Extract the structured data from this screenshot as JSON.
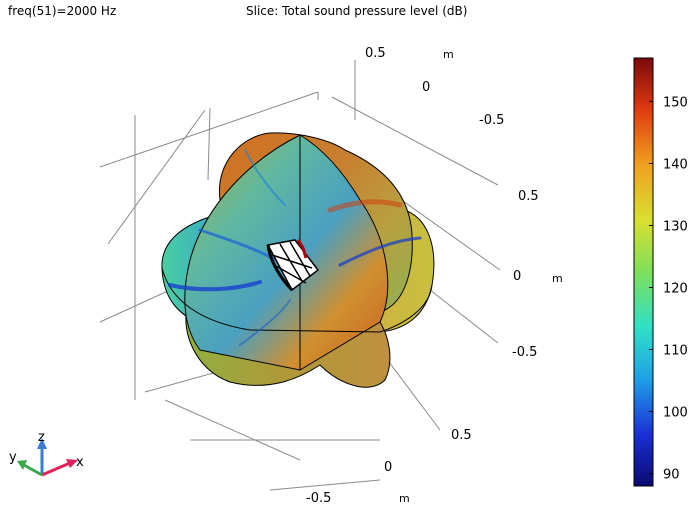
{
  "header": {
    "parameter": "freq(51)=2000 Hz",
    "title": "Slice: Total sound pressure level (dB)"
  },
  "axes_labels": {
    "top_z_pos": "0.5",
    "top_zero": "0",
    "top_z_neg": "-0.5",
    "top_unit": "m",
    "right_pos": "0.5",
    "right_zero": "0",
    "right_neg": "-0.5",
    "right_unit": "m",
    "bottom_pos": "0.5",
    "bottom_zero": "0",
    "bottom_neg": "-0.5",
    "bottom_unit": "m"
  },
  "triad": {
    "x": "x",
    "y": "y",
    "z": "z"
  },
  "colorbar": {
    "min": 88,
    "max": 157,
    "ticks": [
      "150",
      "140",
      "130",
      "120",
      "110",
      "100",
      "90"
    ],
    "colormap": "rainbow"
  }
}
